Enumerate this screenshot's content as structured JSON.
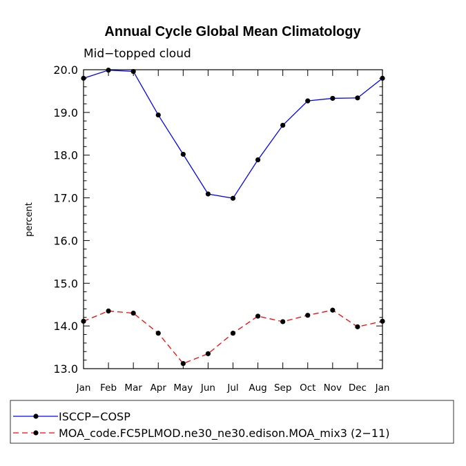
{
  "chart_data": {
    "type": "line",
    "title": "Annual Cycle Global Mean Climatology",
    "subtitle": "Mid−topped cloud",
    "xlabel": "",
    "ylabel": "percent",
    "ylim": [
      13.0,
      20.0
    ],
    "yticks": [
      "13.0",
      "14.0",
      "15.0",
      "16.0",
      "17.0",
      "18.0",
      "19.0",
      "20.0"
    ],
    "categories": [
      "Jan",
      "Feb",
      "Mar",
      "Apr",
      "May",
      "Jun",
      "Jul",
      "Aug",
      "Sep",
      "Oct",
      "Nov",
      "Dec",
      "Jan"
    ],
    "grid": false,
    "legend_position": "bottom",
    "series": [
      {
        "name": "ISCCP−COSP",
        "color": "#0000ff",
        "dash": "solid",
        "marker": "filled-circle",
        "values": [
          19.8,
          19.99,
          19.96,
          18.94,
          18.02,
          17.09,
          16.99,
          17.89,
          18.7,
          19.27,
          19.33,
          19.34,
          19.8
        ]
      },
      {
        "name": "MOA_code.FC5PLMOD.ne30_ne30.edison.MOA_mix3 (2−11)",
        "color": "#ff0000",
        "dash": "dashed",
        "marker": "filled-circle",
        "values": [
          14.11,
          14.35,
          14.3,
          13.83,
          13.12,
          13.35,
          13.83,
          14.23,
          14.1,
          14.25,
          14.37,
          13.98,
          14.11
        ]
      }
    ]
  }
}
